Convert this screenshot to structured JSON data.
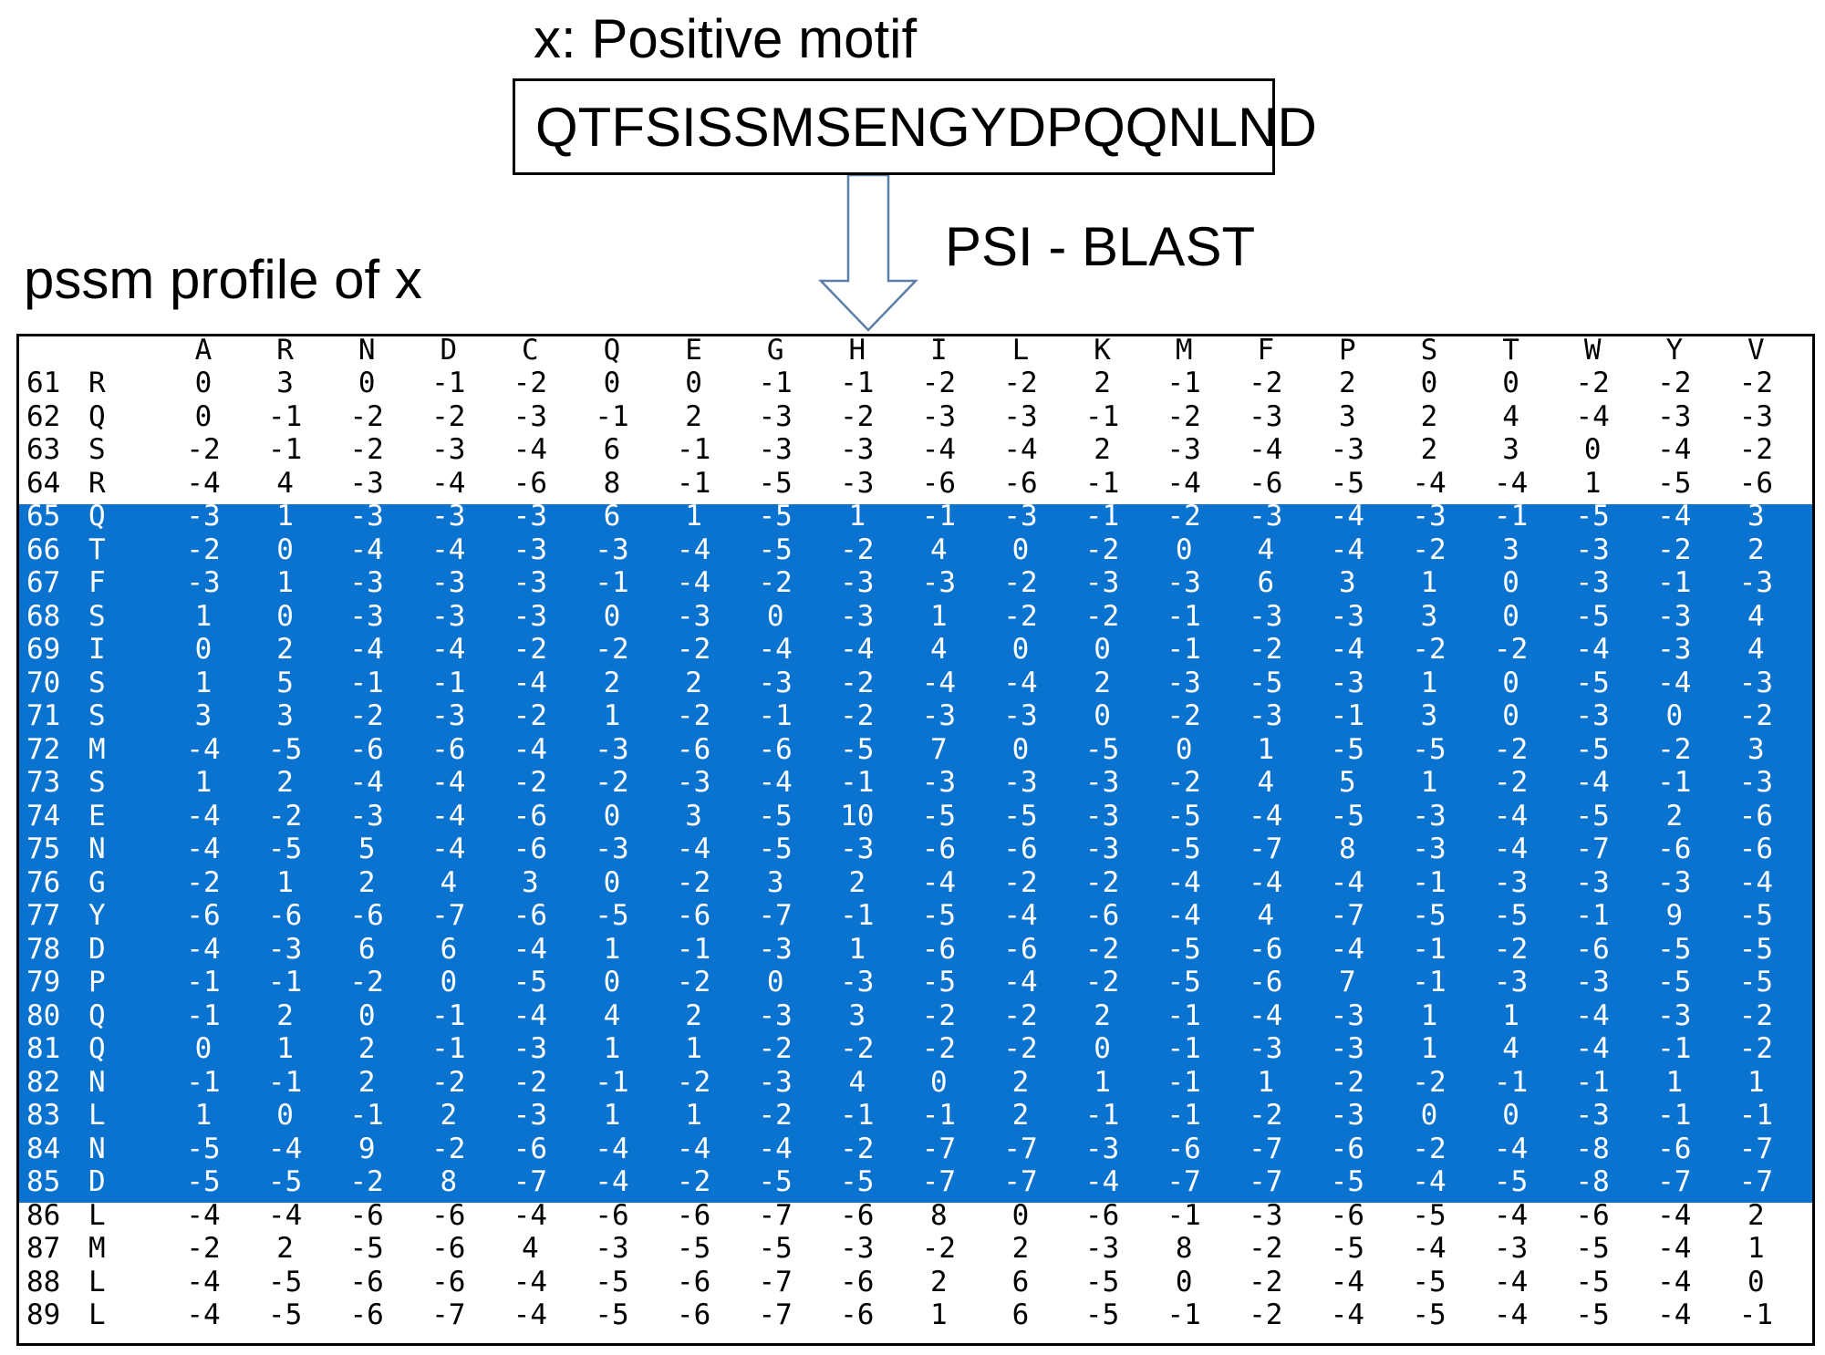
{
  "motif": {
    "label": "x: Positive motif",
    "sequence": "QTFSISSMSENGYDPQQNLND"
  },
  "tool_label": "PSI - BLAST",
  "profile_label": "pssm profile of x",
  "pssm": {
    "columns": [
      "A",
      "R",
      "N",
      "D",
      "C",
      "Q",
      "E",
      "G",
      "H",
      "I",
      "L",
      "K",
      "M",
      "F",
      "P",
      "S",
      "T",
      "W",
      "Y",
      "V"
    ],
    "highlighted_range": [
      65,
      85
    ],
    "highlight_color": "#0a72cf",
    "rows": [
      {
        "pos": "61",
        "res": "R",
        "values": [
          "0",
          "3",
          "0",
          "-1",
          "-2",
          "0",
          "0",
          "-1",
          "-1",
          "-2",
          "-2",
          "2",
          "-1",
          "-2",
          "2",
          "0",
          "0",
          "-2",
          "-2",
          "-2"
        ]
      },
      {
        "pos": "62",
        "res": "Q",
        "values": [
          "0",
          "-1",
          "-2",
          "-2",
          "-3",
          "-1",
          "2",
          "-3",
          "-2",
          "-3",
          "-3",
          "-1",
          "-2",
          "-3",
          "3",
          "2",
          "4",
          "-4",
          "-3",
          "-3"
        ]
      },
      {
        "pos": "63",
        "res": "S",
        "values": [
          "-2",
          "-1",
          "-2",
          "-3",
          "-4",
          "6",
          "-1",
          "-3",
          "-3",
          "-4",
          "-4",
          "2",
          "-3",
          "-4",
          "-3",
          "2",
          "3",
          "0",
          "-4",
          "-2"
        ]
      },
      {
        "pos": "64",
        "res": "R",
        "values": [
          "-4",
          "4",
          "-3",
          "-4",
          "-6",
          "8",
          "-1",
          "-5",
          "-3",
          "-6",
          "-6",
          "-1",
          "-4",
          "-6",
          "-5",
          "-4",
          "-4",
          "1",
          "-5",
          "-6"
        ]
      },
      {
        "pos": "65",
        "res": "Q",
        "values": [
          "-3",
          "1",
          "-3",
          "-3",
          "-3",
          "6",
          "1",
          "-5",
          "1",
          "-1",
          "-3",
          "-1",
          "-2",
          "-3",
          "-4",
          "-3",
          "-1",
          "-5",
          "-4",
          "3"
        ]
      },
      {
        "pos": "66",
        "res": "T",
        "values": [
          "-2",
          "0",
          "-4",
          "-4",
          "-3",
          "-3",
          "-4",
          "-5",
          "-2",
          "4",
          "0",
          "-2",
          "0",
          "4",
          "-4",
          "-2",
          "3",
          "-3",
          "-2",
          "2"
        ]
      },
      {
        "pos": "67",
        "res": "F",
        "values": [
          "-3",
          "1",
          "-3",
          "-3",
          "-3",
          "-1",
          "-4",
          "-2",
          "-3",
          "-3",
          "-2",
          "-3",
          "-3",
          "6",
          "3",
          "1",
          "0",
          "-3",
          "-1",
          "-3"
        ]
      },
      {
        "pos": "68",
        "res": "S",
        "values": [
          "1",
          "0",
          "-3",
          "-3",
          "-3",
          "0",
          "-3",
          "0",
          "-3",
          "1",
          "-2",
          "-2",
          "-1",
          "-3",
          "-3",
          "3",
          "0",
          "-5",
          "-3",
          "4"
        ]
      },
      {
        "pos": "69",
        "res": "I",
        "values": [
          "0",
          "2",
          "-4",
          "-4",
          "-2",
          "-2",
          "-2",
          "-4",
          "-4",
          "4",
          "0",
          "0",
          "-1",
          "-2",
          "-4",
          "-2",
          "-2",
          "-4",
          "-3",
          "4"
        ]
      },
      {
        "pos": "70",
        "res": "S",
        "values": [
          "1",
          "5",
          "-1",
          "-1",
          "-4",
          "2",
          "2",
          "-3",
          "-2",
          "-4",
          "-4",
          "2",
          "-3",
          "-5",
          "-3",
          "1",
          "0",
          "-5",
          "-4",
          "-3"
        ]
      },
      {
        "pos": "71",
        "res": "S",
        "values": [
          "3",
          "3",
          "-2",
          "-3",
          "-2",
          "1",
          "-2",
          "-1",
          "-2",
          "-3",
          "-3",
          "0",
          "-2",
          "-3",
          "-1",
          "3",
          "0",
          "-3",
          "0",
          "-2"
        ]
      },
      {
        "pos": "72",
        "res": "M",
        "values": [
          "-4",
          "-5",
          "-6",
          "-6",
          "-4",
          "-3",
          "-6",
          "-6",
          "-5",
          "7",
          "0",
          "-5",
          "0",
          "1",
          "-5",
          "-5",
          "-2",
          "-5",
          "-2",
          "3"
        ]
      },
      {
        "pos": "73",
        "res": "S",
        "values": [
          "1",
          "2",
          "-4",
          "-4",
          "-2",
          "-2",
          "-3",
          "-4",
          "-1",
          "-3",
          "-3",
          "-3",
          "-2",
          "4",
          "5",
          "1",
          "-2",
          "-4",
          "-1",
          "-3"
        ]
      },
      {
        "pos": "74",
        "res": "E",
        "values": [
          "-4",
          "-2",
          "-3",
          "-4",
          "-6",
          "0",
          "3",
          "-5",
          "10",
          "-5",
          "-5",
          "-3",
          "-5",
          "-4",
          "-5",
          "-3",
          "-4",
          "-5",
          "2",
          "-6"
        ]
      },
      {
        "pos": "75",
        "res": "N",
        "values": [
          "-4",
          "-5",
          "5",
          "-4",
          "-6",
          "-3",
          "-4",
          "-5",
          "-3",
          "-6",
          "-6",
          "-3",
          "-5",
          "-7",
          "8",
          "-3",
          "-4",
          "-7",
          "-6",
          "-6"
        ]
      },
      {
        "pos": "76",
        "res": "G",
        "values": [
          "-2",
          "1",
          "2",
          "4",
          "3",
          "0",
          "-2",
          "3",
          "2",
          "-4",
          "-2",
          "-2",
          "-4",
          "-4",
          "-4",
          "-1",
          "-3",
          "-3",
          "-3",
          "-4"
        ]
      },
      {
        "pos": "77",
        "res": "Y",
        "values": [
          "-6",
          "-6",
          "-6",
          "-7",
          "-6",
          "-5",
          "-6",
          "-7",
          "-1",
          "-5",
          "-4",
          "-6",
          "-4",
          "4",
          "-7",
          "-5",
          "-5",
          "-1",
          "9",
          "-5"
        ]
      },
      {
        "pos": "78",
        "res": "D",
        "values": [
          "-4",
          "-3",
          "6",
          "6",
          "-4",
          "1",
          "-1",
          "-3",
          "1",
          "-6",
          "-6",
          "-2",
          "-5",
          "-6",
          "-4",
          "-1",
          "-2",
          "-6",
          "-5",
          "-5"
        ]
      },
      {
        "pos": "79",
        "res": "P",
        "values": [
          "-1",
          "-1",
          "-2",
          "0",
          "-5",
          "0",
          "-2",
          "0",
          "-3",
          "-5",
          "-4",
          "-2",
          "-5",
          "-6",
          "7",
          "-1",
          "-3",
          "-3",
          "-5",
          "-5"
        ]
      },
      {
        "pos": "80",
        "res": "Q",
        "values": [
          "-1",
          "2",
          "0",
          "-1",
          "-4",
          "4",
          "2",
          "-3",
          "3",
          "-2",
          "-2",
          "2",
          "-1",
          "-4",
          "-3",
          "1",
          "1",
          "-4",
          "-3",
          "-2"
        ]
      },
      {
        "pos": "81",
        "res": "Q",
        "values": [
          "0",
          "1",
          "2",
          "-1",
          "-3",
          "1",
          "1",
          "-2",
          "-2",
          "-2",
          "-2",
          "0",
          "-1",
          "-3",
          "-3",
          "1",
          "4",
          "-4",
          "-1",
          "-2"
        ]
      },
      {
        "pos": "82",
        "res": "N",
        "values": [
          "-1",
          "-1",
          "2",
          "-2",
          "-2",
          "-1",
          "-2",
          "-3",
          "4",
          "0",
          "2",
          "1",
          "-1",
          "1",
          "-2",
          "-2",
          "-1",
          "-1",
          "1",
          "1"
        ]
      },
      {
        "pos": "83",
        "res": "L",
        "values": [
          "1",
          "0",
          "-1",
          "2",
          "-3",
          "1",
          "1",
          "-2",
          "-1",
          "-1",
          "2",
          "-1",
          "-1",
          "-2",
          "-3",
          "0",
          "0",
          "-3",
          "-1",
          "-1"
        ]
      },
      {
        "pos": "84",
        "res": "N",
        "values": [
          "-5",
          "-4",
          "9",
          "-2",
          "-6",
          "-4",
          "-4",
          "-4",
          "-2",
          "-7",
          "-7",
          "-3",
          "-6",
          "-7",
          "-6",
          "-2",
          "-4",
          "-8",
          "-6",
          "-7"
        ]
      },
      {
        "pos": "85",
        "res": "D",
        "values": [
          "-5",
          "-5",
          "-2",
          "8",
          "-7",
          "-4",
          "-2",
          "-5",
          "-5",
          "-7",
          "-7",
          "-4",
          "-7",
          "-7",
          "-5",
          "-4",
          "-5",
          "-8",
          "-7",
          "-7"
        ]
      },
      {
        "pos": "86",
        "res": "L",
        "values": [
          "-4",
          "-4",
          "-6",
          "-6",
          "-4",
          "-6",
          "-6",
          "-7",
          "-6",
          "8",
          "0",
          "-6",
          "-1",
          "-3",
          "-6",
          "-5",
          "-4",
          "-6",
          "-4",
          "2"
        ]
      },
      {
        "pos": "87",
        "res": "M",
        "values": [
          "-2",
          "2",
          "-5",
          "-6",
          "4",
          "-3",
          "-5",
          "-5",
          "-3",
          "-2",
          "2",
          "-3",
          "8",
          "-2",
          "-5",
          "-4",
          "-3",
          "-5",
          "-4",
          "1"
        ]
      },
      {
        "pos": "88",
        "res": "L",
        "values": [
          "-4",
          "-5",
          "-6",
          "-6",
          "-4",
          "-5",
          "-6",
          "-7",
          "-6",
          "2",
          "6",
          "-5",
          "0",
          "-2",
          "-4",
          "-5",
          "-4",
          "-5",
          "-4",
          "0"
        ]
      },
      {
        "pos": "89",
        "res": "L",
        "values": [
          "-4",
          "-5",
          "-6",
          "-7",
          "-4",
          "-5",
          "-6",
          "-7",
          "-6",
          "1",
          "6",
          "-5",
          "-1",
          "-2",
          "-4",
          "-5",
          "-4",
          "-5",
          "-4",
          "-1"
        ]
      }
    ]
  }
}
